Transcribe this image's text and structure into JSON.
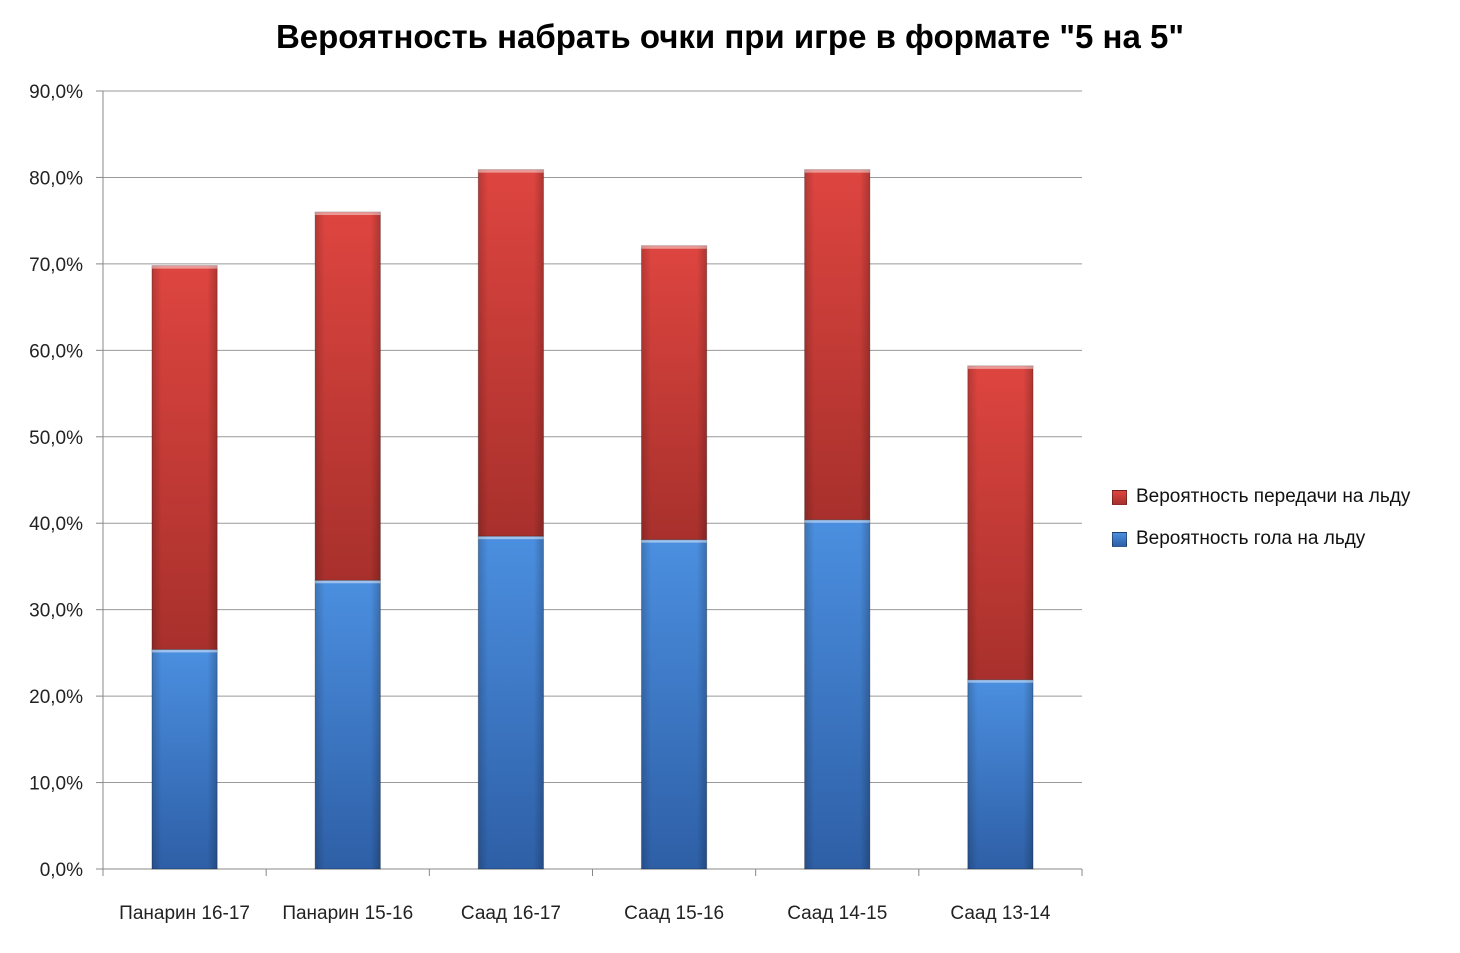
{
  "chart_data": {
    "type": "bar",
    "stacked": true,
    "title": "Вероятность набрать очки при игре в формате \"5 на 5\"",
    "categories": [
      "Панарин 16-17",
      "Панарин 15-16",
      "Саад 16-17",
      "Саад 15-16",
      "Саад 14-15",
      "Саад 13-14"
    ],
    "series": [
      {
        "name": "Вероятность гола на льду",
        "color": "#3d7fd6",
        "values": [
          25.4,
          33.4,
          38.5,
          38.1,
          40.4,
          21.9
        ]
      },
      {
        "name": "Вероятность передачи на льду",
        "color": "#d43a35",
        "values": [
          44.4,
          42.6,
          42.4,
          34.0,
          40.5,
          36.3
        ]
      }
    ],
    "ylim": [
      0,
      90
    ],
    "ytick_labels": [
      "0,0%",
      "10,0%",
      "20,0%",
      "30,0%",
      "40,0%",
      "50,0%",
      "60,0%",
      "70,0%",
      "80,0%",
      "90,0%"
    ],
    "xlabel": "",
    "ylabel": "",
    "grid": true,
    "legend_position": "right"
  }
}
